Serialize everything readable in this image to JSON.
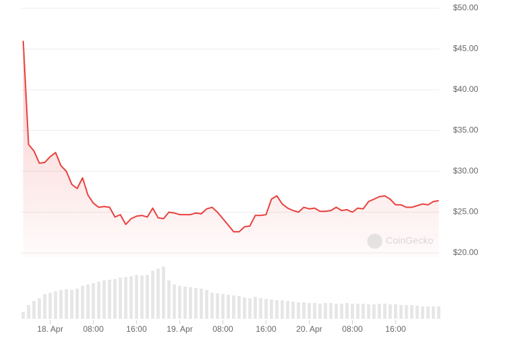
{
  "chart_data": {
    "type": "line",
    "x": [
      -5,
      -4,
      -3,
      -2,
      -1,
      0,
      1,
      2,
      3,
      4,
      5,
      6,
      7,
      8,
      9,
      10,
      11,
      12,
      13,
      14,
      15,
      16,
      17,
      18,
      19,
      20,
      21,
      22,
      23,
      24,
      25,
      26,
      27,
      28,
      29,
      30,
      31,
      32,
      33,
      34,
      35,
      36,
      37,
      38,
      39,
      40,
      41,
      42,
      43,
      44,
      45,
      46,
      47,
      48,
      49,
      50,
      51,
      52,
      53,
      54,
      55,
      56,
      57,
      58,
      59,
      60,
      61,
      62,
      63,
      64,
      65,
      66,
      67,
      68,
      69,
      70,
      71,
      72
    ],
    "series": [
      {
        "color": "#e8413e",
        "values": [
          46,
          33.3,
          32.5,
          31,
          31.1,
          31.8,
          32.3,
          30.7,
          30,
          28.4,
          27.9,
          29.2,
          27.1,
          26.1,
          25.6,
          25.7,
          25.6,
          24.4,
          24.7,
          23.5,
          24.2,
          24.5,
          24.6,
          24.4,
          25.5,
          24.3,
          24.2,
          25,
          24.9,
          24.7,
          24.7,
          24.7,
          24.9,
          24.8,
          25.4,
          25.6,
          25,
          24.2,
          23.4,
          22.6,
          22.6,
          23.2,
          23.3,
          24.6,
          24.6,
          24.7,
          26.6,
          27,
          26,
          25.5,
          25.2,
          25,
          25.6,
          25.4,
          25.5,
          25.1,
          25.1,
          25.2,
          25.6,
          25.2,
          25.3,
          25,
          25.5,
          25.4,
          26.3,
          26.6,
          26.9,
          27,
          26.6,
          25.9,
          25.9,
          25.6,
          25.6,
          25.8,
          26,
          25.9,
          26.3,
          26.4
        ]
      }
    ],
    "volume": {
      "color": "#e6e6e6",
      "ylim": [
        0,
        80
      ],
      "values": [
        10,
        20,
        26,
        30,
        36,
        38,
        40,
        42,
        43,
        42,
        44,
        48,
        50,
        52,
        54,
        56,
        57,
        58,
        60,
        61,
        62,
        64,
        63,
        64,
        70,
        73,
        76,
        56,
        50,
        48,
        47,
        46,
        45,
        44,
        42,
        38,
        37,
        36,
        35,
        34,
        33,
        31,
        30,
        32,
        30,
        29,
        28,
        27,
        27,
        26,
        25,
        24,
        24,
        23,
        23,
        22,
        23,
        23,
        22,
        22,
        23,
        22,
        22,
        22,
        21,
        21,
        22,
        22,
        21,
        21,
        20,
        20,
        20,
        19,
        18,
        18,
        18,
        18
      ]
    },
    "xlim": [
      -5.1,
      72.1
    ],
    "xticks": [
      {
        "value": 0,
        "label": "18. Apr"
      },
      {
        "value": 8,
        "label": "08:00"
      },
      {
        "value": 16,
        "label": "16:00"
      },
      {
        "value": 24,
        "label": "19. Apr"
      },
      {
        "value": 32,
        "label": "08:00"
      },
      {
        "value": 40,
        "label": "16:00"
      },
      {
        "value": 48,
        "label": "20. Apr"
      },
      {
        "value": 56,
        "label": "08:00"
      },
      {
        "value": 64,
        "label": "16:00"
      }
    ],
    "ylim": [
      20,
      50
    ],
    "yticks": [
      {
        "value": 20,
        "label": "$20.00"
      },
      {
        "value": 25,
        "label": "$25.00"
      },
      {
        "value": 30,
        "label": "$30.00"
      },
      {
        "value": 35,
        "label": "$35.00"
      },
      {
        "value": 40,
        "label": "$40.00"
      },
      {
        "value": 45,
        "label": "$45.00"
      },
      {
        "value": 50,
        "label": "$50.00"
      }
    ],
    "grid": true,
    "watermark": "CoinGecko"
  }
}
